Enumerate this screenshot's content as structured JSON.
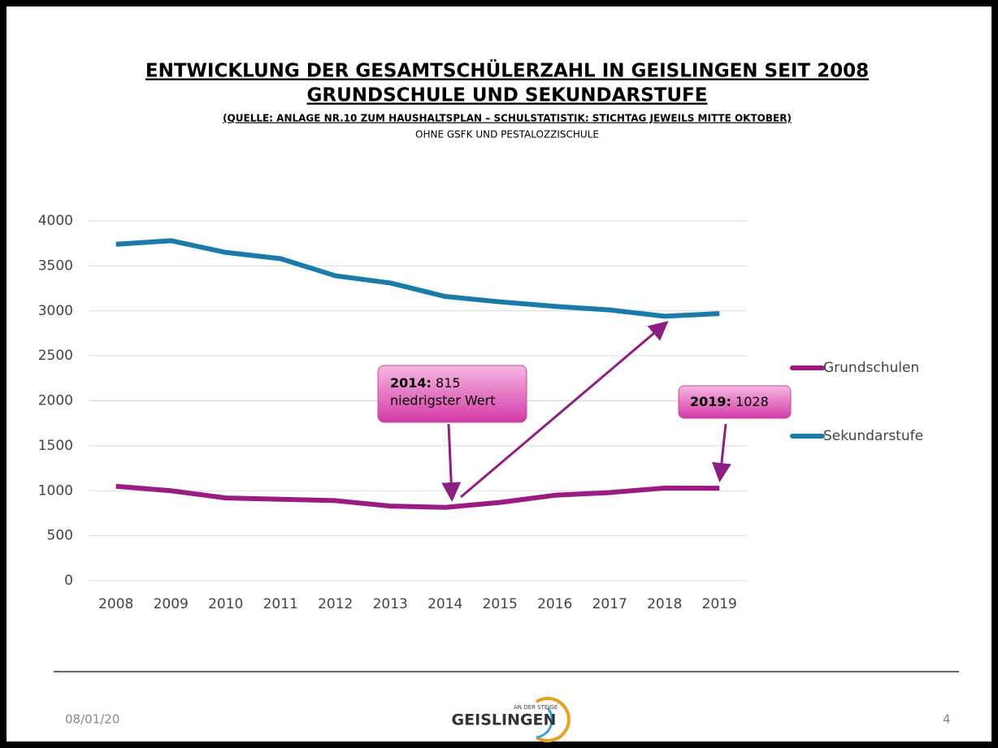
{
  "chart_data": {
    "type": "line",
    "title": "ENTWICKLUNG DER GESAMTSCHÜLERZAHL IN GEISLINGEN SEIT 2008",
    "subtitle": "GRUNDSCHULE UND SEKUNDARSTUFE",
    "source": "(QUELLE: ANLAGE NR.10 ZUM HAUSHALTSPLAN – SCHULSTATISTIK: STICHTAG JEWEILS MITTE OKTOBER)",
    "note": "OHNE GSFK UND PESTALOZZISCHULE",
    "categories": [
      "2008",
      "2009",
      "2010",
      "2011",
      "2012",
      "2013",
      "2014",
      "2015",
      "2016",
      "2017",
      "2018",
      "2019"
    ],
    "series": [
      {
        "name": "Grundschulen",
        "color": "#9b1b82",
        "values": [
          1050,
          1000,
          920,
          905,
          890,
          830,
          815,
          870,
          950,
          980,
          1030,
          1028
        ]
      },
      {
        "name": "Sekundarstufe",
        "color": "#1a7aa8",
        "values": [
          3740,
          3780,
          3650,
          3580,
          3390,
          3310,
          3160,
          3100,
          3050,
          3010,
          2940,
          2970
        ]
      }
    ],
    "ylim": [
      0,
      4000
    ],
    "yticks": [
      0,
      500,
      1000,
      1500,
      2000,
      2500,
      3000,
      3500,
      4000
    ],
    "grid": true,
    "legend": "right",
    "annotations": [
      {
        "label": "2014:",
        "text": "815",
        "note": "niedrigster Wert"
      },
      {
        "label": "2019:",
        "text": "1028"
      }
    ]
  },
  "footer": {
    "date": "08/01/20",
    "page": "4",
    "logo_top": "AN DER STEIGE",
    "logo": "GEISLINGEN"
  }
}
